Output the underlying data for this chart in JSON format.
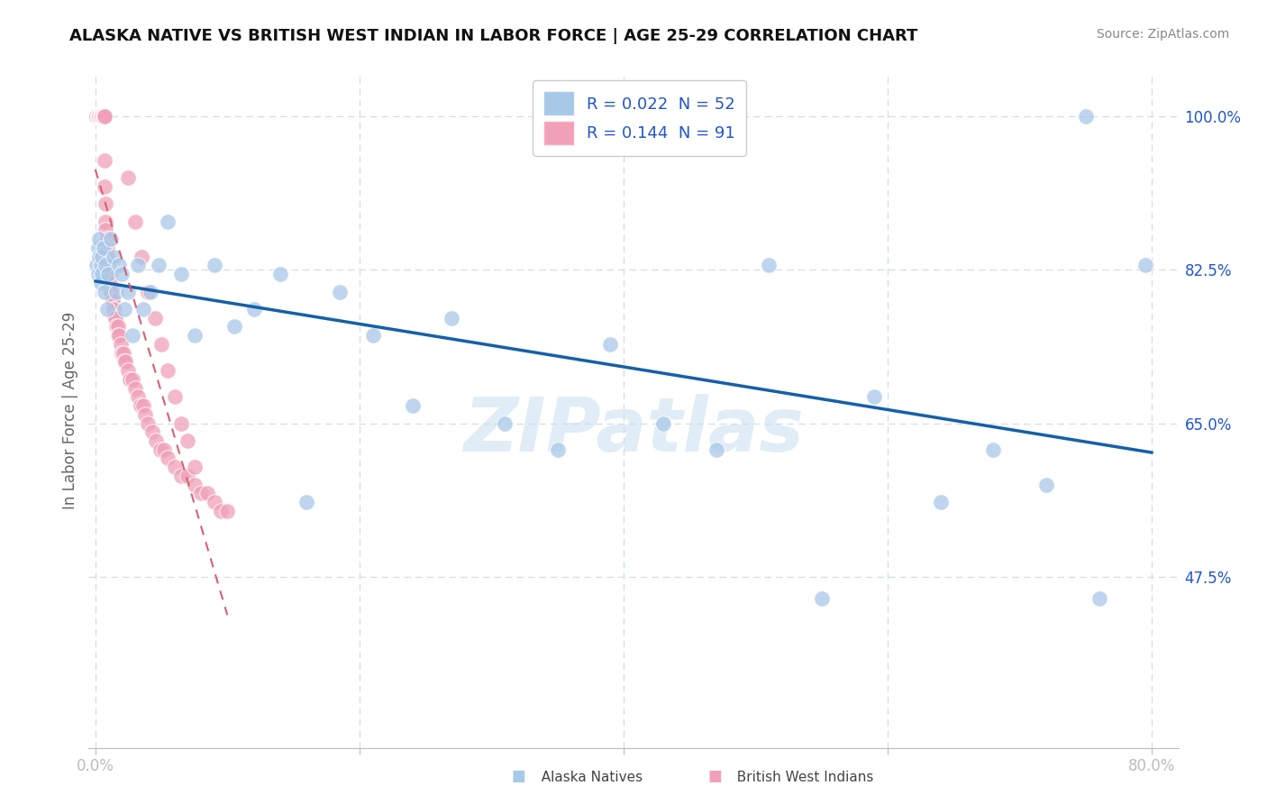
{
  "title": "ALASKA NATIVE VS BRITISH WEST INDIAN IN LABOR FORCE | AGE 25-29 CORRELATION CHART",
  "source": "Source: ZipAtlas.com",
  "ylabel": "In Labor Force | Age 25-29",
  "xlim": [
    -0.005,
    0.82
  ],
  "ylim": [
    0.28,
    1.05
  ],
  "xtick_positions": [
    0.0,
    0.2,
    0.4,
    0.6,
    0.8
  ],
  "xticklabels": [
    "0.0%",
    "",
    "",
    "",
    "80.0%"
  ],
  "ytick_positions": [
    1.0,
    0.825,
    0.65,
    0.475
  ],
  "ytick_labels": [
    "100.0%",
    "82.5%",
    "65.0%",
    "47.5%"
  ],
  "R_alaska": 0.022,
  "N_alaska": 52,
  "R_british": 0.144,
  "N_british": 91,
  "blue_dot_color": "#a8c8e8",
  "pink_dot_color": "#f0a0b8",
  "blue_line_color": "#1560a8",
  "pink_line_color": "#d86070",
  "legend_text_color": "#2255cc",
  "grid_color": "#d0dde8",
  "watermark": "ZIPatlas",
  "watermark_color": "#c8dff0",
  "alaska_x": [
    0.001,
    0.002,
    0.002,
    0.003,
    0.003,
    0.004,
    0.004,
    0.005,
    0.005,
    0.006,
    0.007,
    0.008,
    0.009,
    0.01,
    0.012,
    0.014,
    0.016,
    0.018,
    0.02,
    0.022,
    0.025,
    0.028,
    0.032,
    0.036,
    0.042,
    0.048,
    0.055,
    0.065,
    0.075,
    0.09,
    0.105,
    0.12,
    0.14,
    0.16,
    0.185,
    0.21,
    0.24,
    0.27,
    0.31,
    0.35,
    0.39,
    0.43,
    0.47,
    0.51,
    0.55,
    0.59,
    0.64,
    0.68,
    0.72,
    0.76,
    0.795,
    0.75
  ],
  "alaska_y": [
    0.83,
    0.85,
    0.82,
    0.84,
    0.86,
    0.83,
    0.81,
    0.84,
    0.82,
    0.85,
    0.8,
    0.83,
    0.78,
    0.82,
    0.86,
    0.84,
    0.8,
    0.83,
    0.82,
    0.78,
    0.8,
    0.75,
    0.83,
    0.78,
    0.8,
    0.83,
    0.88,
    0.82,
    0.75,
    0.83,
    0.76,
    0.78,
    0.82,
    0.56,
    0.8,
    0.75,
    0.67,
    0.77,
    0.65,
    0.62,
    0.74,
    0.65,
    0.62,
    0.83,
    0.45,
    0.68,
    0.56,
    0.62,
    0.58,
    0.45,
    0.83,
    1.0
  ],
  "british_x": [
    0.001,
    0.001,
    0.001,
    0.002,
    0.002,
    0.002,
    0.002,
    0.003,
    0.003,
    0.003,
    0.003,
    0.003,
    0.004,
    0.004,
    0.004,
    0.004,
    0.005,
    0.005,
    0.005,
    0.005,
    0.005,
    0.006,
    0.006,
    0.006,
    0.006,
    0.007,
    0.007,
    0.007,
    0.007,
    0.008,
    0.008,
    0.008,
    0.009,
    0.009,
    0.009,
    0.01,
    0.01,
    0.01,
    0.011,
    0.011,
    0.012,
    0.012,
    0.013,
    0.013,
    0.014,
    0.014,
    0.015,
    0.015,
    0.016,
    0.017,
    0.017,
    0.018,
    0.019,
    0.02,
    0.021,
    0.022,
    0.023,
    0.025,
    0.026,
    0.028,
    0.03,
    0.032,
    0.034,
    0.036,
    0.038,
    0.04,
    0.043,
    0.046,
    0.049,
    0.052,
    0.055,
    0.06,
    0.065,
    0.07,
    0.075,
    0.08,
    0.085,
    0.09,
    0.095,
    0.1,
    0.025,
    0.03,
    0.035,
    0.04,
    0.045,
    0.05,
    0.055,
    0.06,
    0.065,
    0.07,
    0.075
  ],
  "british_y": [
    1.0,
    1.0,
    1.0,
    1.0,
    1.0,
    1.0,
    1.0,
    1.0,
    1.0,
    1.0,
    1.0,
    1.0,
    1.0,
    1.0,
    1.0,
    1.0,
    1.0,
    1.0,
    1.0,
    1.0,
    1.0,
    1.0,
    1.0,
    1.0,
    1.0,
    1.0,
    1.0,
    0.95,
    0.92,
    0.9,
    0.88,
    0.87,
    0.86,
    0.85,
    0.84,
    0.83,
    0.83,
    0.82,
    0.82,
    0.81,
    0.8,
    0.8,
    0.79,
    0.79,
    0.78,
    0.78,
    0.77,
    0.77,
    0.76,
    0.76,
    0.75,
    0.75,
    0.74,
    0.73,
    0.73,
    0.72,
    0.72,
    0.71,
    0.7,
    0.7,
    0.69,
    0.68,
    0.67,
    0.67,
    0.66,
    0.65,
    0.64,
    0.63,
    0.62,
    0.62,
    0.61,
    0.6,
    0.59,
    0.59,
    0.58,
    0.57,
    0.57,
    0.56,
    0.55,
    0.55,
    0.93,
    0.88,
    0.84,
    0.8,
    0.77,
    0.74,
    0.71,
    0.68,
    0.65,
    0.63,
    0.6
  ]
}
